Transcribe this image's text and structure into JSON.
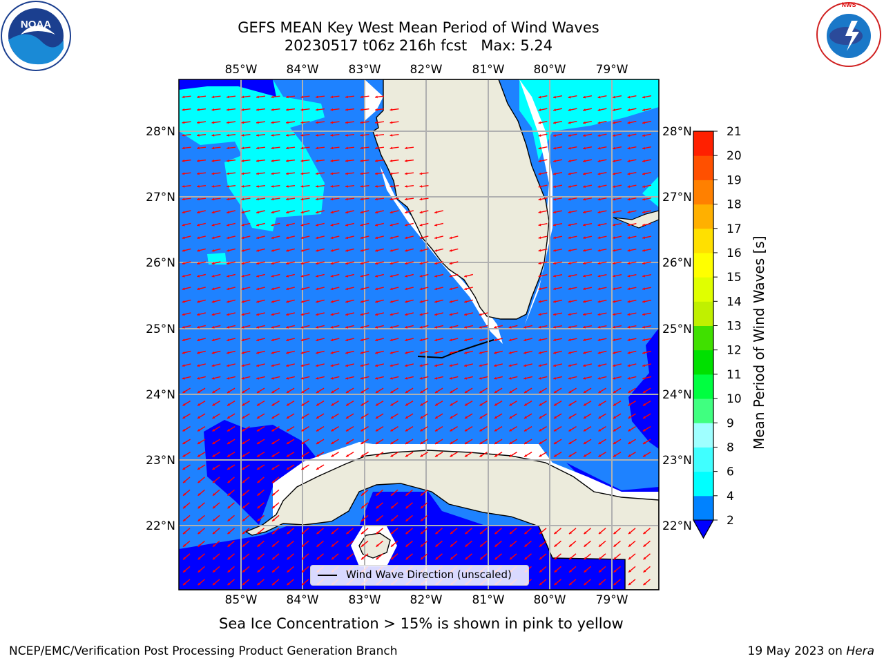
{
  "header": {
    "title_line1": "GEFS MEAN Key West Mean Period of Wind Waves",
    "title_line2": "20230517 t06z 216h fcst   Max: 5.24"
  },
  "logos": {
    "left": {
      "text": "NOAA",
      "ring_text": "NATIONAL OCEANIC AND ATMOSPHERIC ADMINISTRATION · U.S. DEPARTMENT OF COMMERCE"
    },
    "right": {
      "text": "NATIONAL WEATHER SERVICE"
    }
  },
  "map": {
    "lon_labels": [
      "85°W",
      "84°W",
      "83°W",
      "82°W",
      "81°W",
      "80°W",
      "79°W"
    ],
    "lat_labels": [
      "28°N",
      "27°N",
      "26°N",
      "25°N",
      "24°N",
      "23°N",
      "22°N"
    ],
    "legend_label": "Wind Wave Direction (unscaled)",
    "colors": {
      "land": "#ecebdc",
      "ocean_2_4": "#1e82ff",
      "ocean_below_2": "#0000ff",
      "ocean_4_6": "#00ffff",
      "arrows": "#ff0000",
      "grid": "#b0b0b0"
    }
  },
  "colorbar": {
    "label": "Mean Period of Wind Waves [s]",
    "ticks": [
      "2",
      "4",
      "6",
      "8",
      "9",
      "10",
      "11",
      "12",
      "13",
      "14",
      "15",
      "16",
      "17",
      "18",
      "19",
      "20",
      "21"
    ],
    "colors": [
      "#0082ff",
      "#00ffff",
      "#40ffff",
      "#9fffff",
      "#40ff80",
      "#00ff40",
      "#00e000",
      "#40e000",
      "#c0f000",
      "#e0ff00",
      "#ffff00",
      "#ffe000",
      "#ffb000",
      "#ff8000",
      "#ff5000",
      "#ff2000",
      "#ff0000"
    ],
    "extend_color": "#0000ff"
  },
  "caption": "Sea Ice Concentration > 15% is shown in pink to yellow",
  "footer": {
    "left": "NCEP/EMC/Verification Post Processing Product Generation Branch",
    "right_date": "19 May 2023 on ",
    "right_host": "Hera"
  }
}
